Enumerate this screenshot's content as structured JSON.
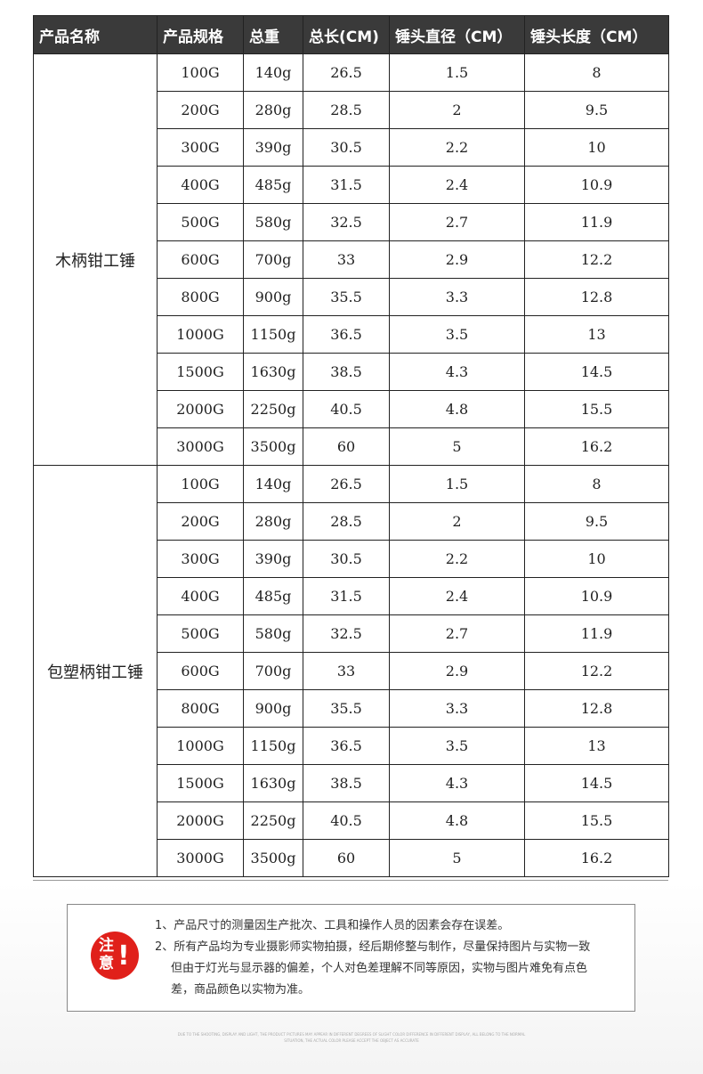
{
  "table": {
    "header": [
      "产品名称",
      "产品规格",
      "总重",
      "总长(CM)",
      "锤头直径（CM）",
      "锤头长度（CM）"
    ],
    "groups": [
      {
        "name": "木柄钳工锤",
        "rows": [
          [
            "100G",
            "140g",
            "26.5",
            "1.5",
            "8"
          ],
          [
            "200G",
            "280g",
            "28.5",
            "2",
            "9.5"
          ],
          [
            "300G",
            "390g",
            "30.5",
            "2.2",
            "10"
          ],
          [
            "400G",
            "485g",
            "31.5",
            "2.4",
            "10.9"
          ],
          [
            "500G",
            "580g",
            "32.5",
            "2.7",
            "11.9"
          ],
          [
            "600G",
            "700g",
            "33",
            "2.9",
            "12.2"
          ],
          [
            "800G",
            "900g",
            "35.5",
            "3.3",
            "12.8"
          ],
          [
            "1000G",
            "1150g",
            "36.5",
            "3.5",
            "13"
          ],
          [
            "1500G",
            "1630g",
            "38.5",
            "4.3",
            "14.5"
          ],
          [
            "2000G",
            "2250g",
            "40.5",
            "4.8",
            "15.5"
          ],
          [
            "3000G",
            "3500g",
            "60",
            "5",
            "16.2"
          ]
        ]
      },
      {
        "name": "包塑柄钳工锤",
        "rows": [
          [
            "100G",
            "140g",
            "26.5",
            "1.5",
            "8"
          ],
          [
            "200G",
            "280g",
            "28.5",
            "2",
            "9.5"
          ],
          [
            "300G",
            "390g",
            "30.5",
            "2.2",
            "10"
          ],
          [
            "400G",
            "485g",
            "31.5",
            "2.4",
            "10.9"
          ],
          [
            "500G",
            "580g",
            "32.5",
            "2.7",
            "11.9"
          ],
          [
            "600G",
            "700g",
            "33",
            "2.9",
            "12.2"
          ],
          [
            "800G",
            "900g",
            "35.5",
            "3.3",
            "12.8"
          ],
          [
            "1000G",
            "1150g",
            "36.5",
            "3.5",
            "13"
          ],
          [
            "1500G",
            "1630g",
            "38.5",
            "4.3",
            "14.5"
          ],
          [
            "2000G",
            "2250g",
            "40.5",
            "4.8",
            "15.5"
          ],
          [
            "3000G",
            "3500g",
            "60",
            "5",
            "16.2"
          ]
        ]
      }
    ]
  },
  "notice": {
    "badge": "注意",
    "badge_mark": "!",
    "lines": [
      "1、产品尺寸的测量因生产批次、工具和操作人员的因素会存在误差。",
      "2、所有产品均为专业摄影师实物拍摄，经后期修整与制作，尽量保持图片与实物一致",
      "但由于灯光与显示器的偏差，个人对色差理解不同等原因，实物与图片难免有点色",
      "差，商品颜色以实物为准。"
    ]
  },
  "footer": {
    "lines": [
      "DUE TO THE SHOOTING, DISPLAY AND LIGHT, THE PRODUCT PICTURES MAY APPEAR IN DIFFERENT DEGREES OF SLIGHT COLOR DIFFERENCE IN DIFFERENT DISPLAY, ALL BELONG TO THE NORMAL",
      "SITUATION, THE ACTUAL COLOR PLEASE ACCEPT THE OBJECT AS ACCURATE"
    ]
  }
}
